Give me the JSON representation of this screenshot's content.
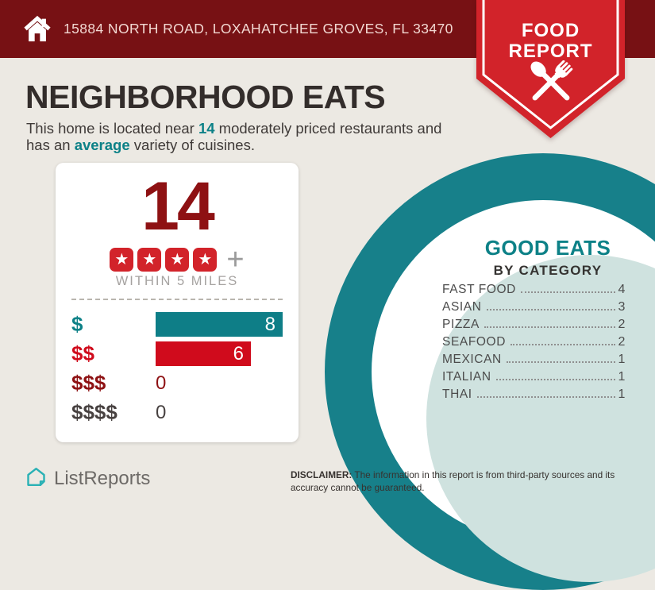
{
  "colors": {
    "background": "#ece9e3",
    "header_bg": "#771114",
    "badge_red": "#d2232a",
    "teal_text": "#0d8187",
    "bar_teal": "#0e7e87",
    "bar_red": "#d00b1c",
    "maroon": "#8e1113",
    "charcoal": "#474140",
    "ring_teal": "#17808a",
    "mint": "#cfe2df",
    "star_red": "#d2232a"
  },
  "header": {
    "address": "15884 NORTH ROAD, LOXAHATCHEE GROVES, FL 33470"
  },
  "badge": {
    "line1": "FOOD",
    "line2": "REPORT"
  },
  "intro": {
    "title": "NEIGHBORHOOD EATS",
    "line1_pre": "This home is located near ",
    "line1_bold": "14",
    "line1_post": " moderately priced restaurants and",
    "line2_pre": "has an ",
    "line2_bold": "average",
    "line2_post": " variety of cuisines."
  },
  "stats_card": {
    "count": "14",
    "star_count": 4,
    "plus_sign": "+",
    "radius_label": "WITHIN 5 MILES"
  },
  "categories": {
    "title": "GOOD EATS",
    "subtitle": "BY CATEGORY",
    "items": [
      {
        "label": "FAST FOOD",
        "value": 4
      },
      {
        "label": "ASIAN",
        "value": 3
      },
      {
        "label": "PIZZA",
        "value": 2
      },
      {
        "label": "SEAFOOD",
        "value": 2
      },
      {
        "label": "MEXICAN",
        "value": 1
      },
      {
        "label": "ITALIAN",
        "value": 1
      },
      {
        "label": "THAI",
        "value": 1
      }
    ]
  },
  "footer": {
    "brand": "ListReports",
    "disclaimer_label": "DISCLAIMER:",
    "disclaimer_text": " The information in this report is from third-party sources and its accuracy cannot be guaranteed."
  },
  "chart_data": [
    {
      "type": "bar",
      "title": "Restaurants by price level within 5 miles",
      "orientation": "horizontal",
      "categories": [
        "$",
        "$$",
        "$$$",
        "$$$$"
      ],
      "values": [
        8,
        6,
        0,
        0
      ],
      "xlim": [
        0,
        8
      ],
      "value_labels": "inside-end",
      "grid": false,
      "label_colors": [
        "#0d8187",
        "#d00b1c",
        "#8e1113",
        "#474140"
      ],
      "bar_colors": [
        "#0e7e87",
        "#d00b1c",
        null,
        null
      ]
    },
    {
      "type": "table",
      "title": "GOOD EATS BY CATEGORY",
      "categories": [
        "FAST FOOD",
        "ASIAN",
        "PIZZA",
        "SEAFOOD",
        "MEXICAN",
        "ITALIAN",
        "THAI"
      ],
      "values": [
        4,
        3,
        2,
        2,
        1,
        1,
        1
      ]
    }
  ]
}
